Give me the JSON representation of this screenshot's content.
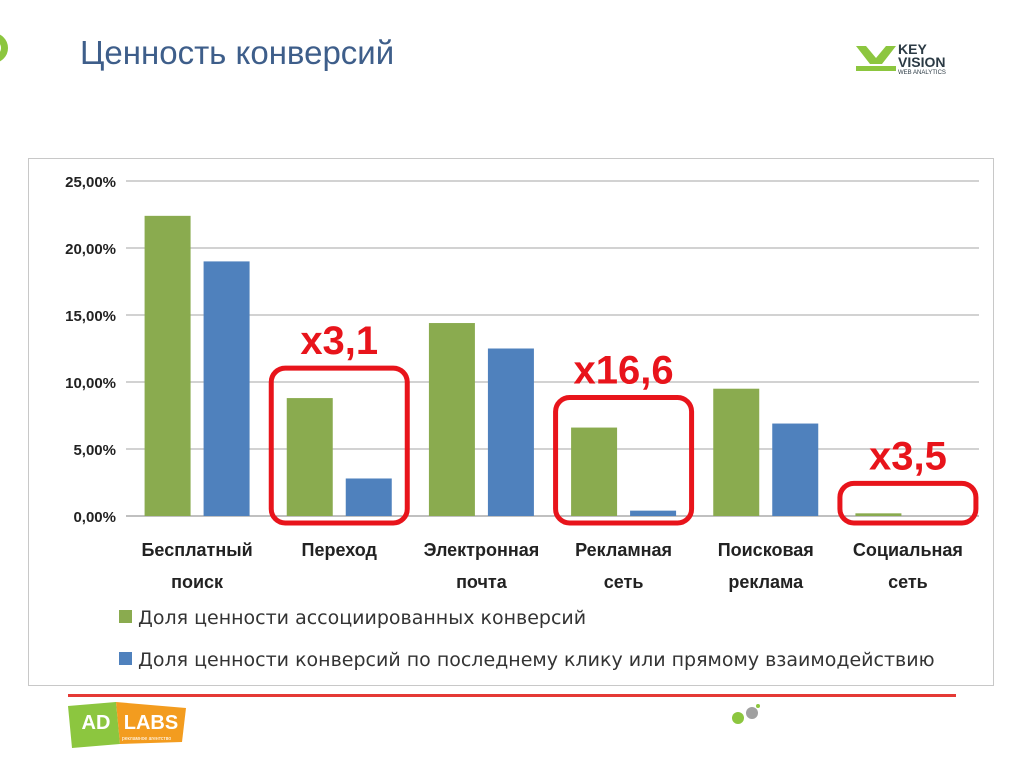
{
  "slide": {
    "title": "Ценность конверсий"
  },
  "logos": {
    "keyvision": {
      "line1": "KEY",
      "line2": "VISION",
      "line3": "WEB ANALYTICS",
      "icon": "keyvision-logo-icon"
    },
    "adlabs": {
      "left": "AD",
      "right": "LABS",
      "tagline": "рекламное агентство"
    }
  },
  "colors": {
    "title": "#3e5e8a",
    "green": "#8aab4f",
    "blue": "#4f81bd",
    "annotation": "#e8141b",
    "footer_line": "#e53935"
  },
  "chart_data": {
    "type": "bar",
    "categories": [
      [
        "Бесплатный",
        "поиск"
      ],
      [
        "Переход"
      ],
      [
        "Электронная",
        "почта"
      ],
      [
        "Рекламная",
        "сеть"
      ],
      [
        "Поисковая",
        "реклама"
      ],
      [
        "Социальная",
        "сеть"
      ]
    ],
    "series": [
      {
        "name": "Доля ценности  ассоциированных  конверсий",
        "color": "#8aab4f",
        "values": [
          22.4,
          8.8,
          14.4,
          6.6,
          9.5,
          0.2
        ]
      },
      {
        "name": "Доля ценности  конверсий  по последнему клику или прямому взаимодействию",
        "color": "#4f81bd",
        "values": [
          19.0,
          2.8,
          12.5,
          0.4,
          6.9,
          0.0
        ]
      }
    ],
    "ylim": [
      0,
      25
    ],
    "yticks": [
      0,
      5,
      10,
      15,
      20,
      25
    ],
    "ytick_labels": [
      "0,00%",
      "5,00%",
      "10,00%",
      "15,00%",
      "20,00%",
      "25,00%"
    ],
    "grid": true,
    "legend": "bottom",
    "annotations": [
      {
        "category_index": 1,
        "label": "x3,1"
      },
      {
        "category_index": 3,
        "label": "x16,6"
      },
      {
        "category_index": 5,
        "label": "x3,5"
      }
    ]
  }
}
